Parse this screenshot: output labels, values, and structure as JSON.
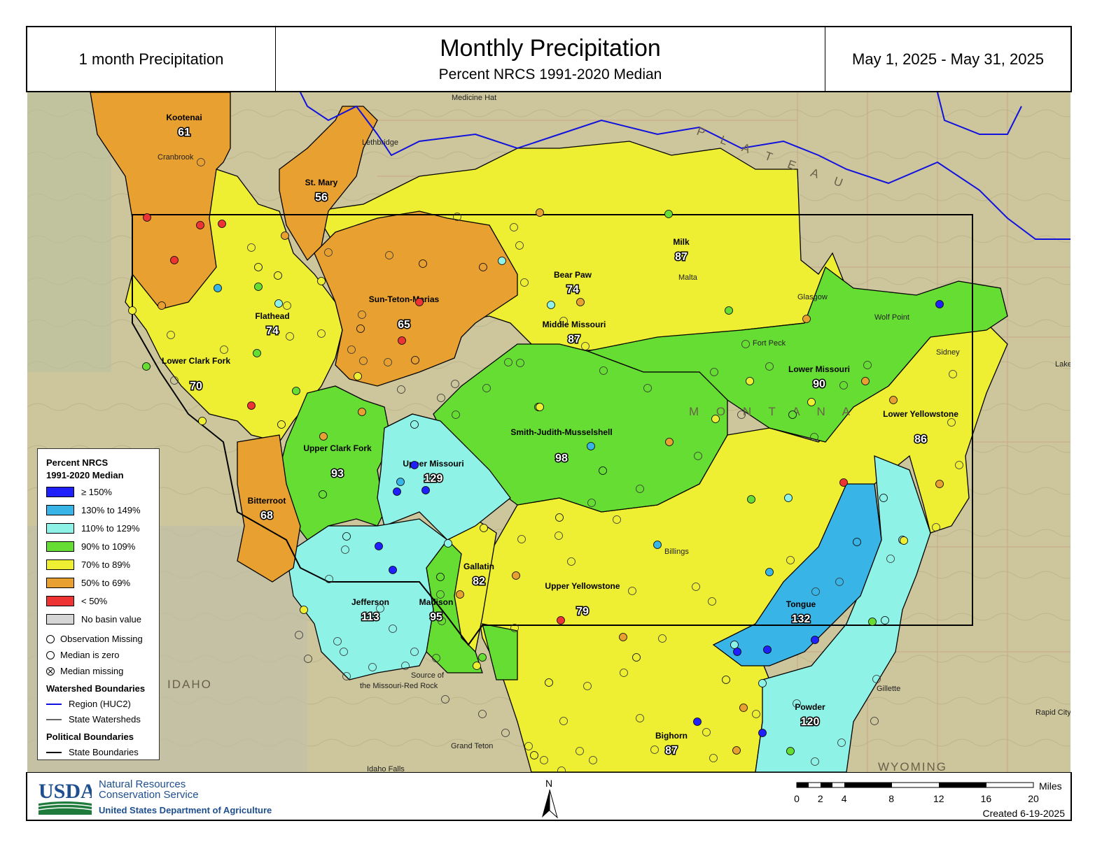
{
  "header": {
    "left": "1 month Precipitation",
    "title": "Monthly Precipitation",
    "subtitle": "Percent NRCS 1991-2020 Median",
    "dates": "May 1, 2025 - May 31, 2025"
  },
  "colors": {
    "ge150": "#2020ff",
    "c130_149": "#38b4e6",
    "c110_129": "#8ef2e6",
    "c90_109": "#66dd33",
    "c70_89": "#eeee33",
    "c50_69": "#e8a030",
    "lt50": "#ee3333",
    "nobasin": "#d6d6d6",
    "terrain": "#c9c49a",
    "region_line": "#1111dd"
  },
  "basins": [
    {
      "name": "Kootenai",
      "value": "61",
      "class": "c50_69"
    },
    {
      "name": "St. Mary",
      "value": "56",
      "class": "c50_69"
    },
    {
      "name": "Sun-Teton-Marias",
      "value": "65",
      "class": "c50_69"
    },
    {
      "name": "Bitterroot",
      "value": "68",
      "class": "c50_69"
    },
    {
      "name": "Flathead",
      "value": "74",
      "class": "c70_89"
    },
    {
      "name": "Lower Clark Fork",
      "value": "70",
      "class": "c70_89"
    },
    {
      "name": "Milk",
      "value": "87",
      "class": "c70_89"
    },
    {
      "name": "Bear Paw",
      "value": "74",
      "class": "c70_89"
    },
    {
      "name": "Middle Missouri",
      "value": "87",
      "class": "c70_89"
    },
    {
      "name": "Lower Yellowstone",
      "value": "86",
      "class": "c70_89"
    },
    {
      "name": "Upper Yellowstone",
      "value": "79",
      "class": "c70_89"
    },
    {
      "name": "Gallatin",
      "value": "82",
      "class": "c70_89"
    },
    {
      "name": "Bighorn",
      "value": "87",
      "class": "c70_89"
    },
    {
      "name": "Upper Clark Fork",
      "value": "93",
      "class": "c90_109"
    },
    {
      "name": "Smith-Judith-Musselshell",
      "value": "98",
      "class": "c90_109"
    },
    {
      "name": "Lower Missouri",
      "value": "90",
      "class": "c90_109"
    },
    {
      "name": "Madison",
      "value": "95",
      "class": "c90_109"
    },
    {
      "name": "Upper Missouri",
      "value": "129",
      "class": "c110_129"
    },
    {
      "name": "Jefferson",
      "value": "113",
      "class": "c110_129"
    },
    {
      "name": "Powder",
      "value": "120",
      "class": "c110_129"
    },
    {
      "name": "Tongue",
      "value": "132",
      "class": "c130_149"
    }
  ],
  "places": {
    "medicine_hat": "Medicine Hat",
    "lethbridge": "Lethbridge",
    "cranbrook": "Cranbrook",
    "malta": "Malta",
    "glasgow": "Glasgow",
    "wolf_point": "Wolf Point",
    "sidney": "Sidney",
    "billings": "Billings",
    "gillette": "Gillette",
    "rapid_city": "Rapid City",
    "idaho_falls": "Idaho Falls",
    "grand_teton": "Grand Teton",
    "plateau": "P L A T E A U",
    "montana": "M O N T A N A",
    "idaho": "IDAHO",
    "wyoming": "WYOMING",
    "source": "Source of",
    "source2": "the Missouri-Red Rock",
    "fort_peck": "Fort Peck",
    "lake_sak": "Lake Sak"
  },
  "legend": {
    "title1": "Percent NRCS",
    "title2": "1991-2020 Median",
    "classes": [
      {
        "label": "≥ 150%",
        "key": "ge150"
      },
      {
        "label": "130% to 149%",
        "key": "c130_149"
      },
      {
        "label": "110% to 129%",
        "key": "c110_129"
      },
      {
        "label": "90% to 109%",
        "key": "c90_109"
      },
      {
        "label": "70% to 89%",
        "key": "c70_89"
      },
      {
        "label": "50% to 69%",
        "key": "c50_69"
      },
      {
        "label": "< 50%",
        "key": "lt50"
      },
      {
        "label": "No basin value",
        "key": "nobasin"
      }
    ],
    "obs_missing": "Observation Missing",
    "median_zero": "Median is zero",
    "median_missing": "Median missing",
    "watershed_title": "Watershed Boundaries",
    "region": "Region (HUC2)",
    "state_ws": "State Watersheds",
    "political_title": "Political Boundaries",
    "state_bound": "State Boundaries"
  },
  "footer": {
    "usda": "USDA",
    "nrcs1": "Natural Resources",
    "nrcs2": "Conservation Service",
    "dept": "United States Department of Agriculture",
    "north": "N",
    "scale_unit": "Miles",
    "scale_ticks": [
      "0",
      "2",
      "4",
      "8",
      "12",
      "16",
      "20"
    ],
    "created": "Created 6-19-2025"
  }
}
